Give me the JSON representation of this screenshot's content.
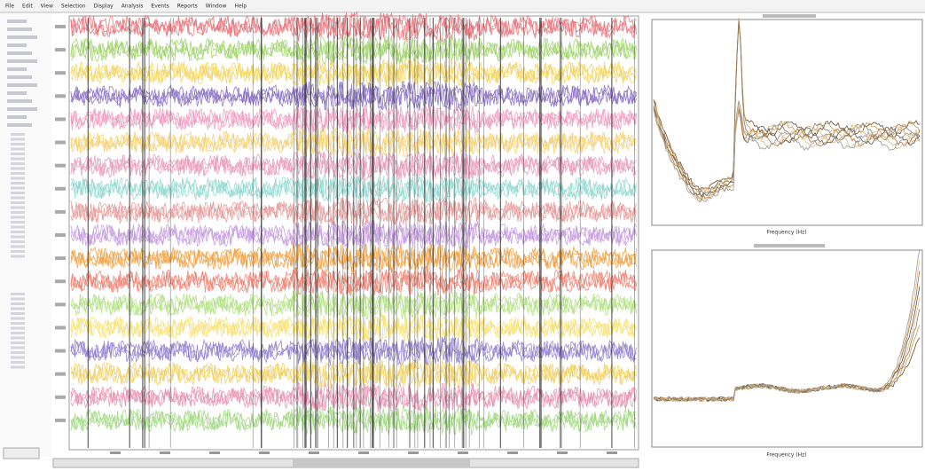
{
  "menu": [
    "File",
    "Edit",
    "View",
    "Selection",
    "Display",
    "Analysis",
    "Events",
    "Reports",
    "Window",
    "Help"
  ],
  "top_plot": {
    "x_label": "Frequency (Hz)"
  },
  "bottom_plot": {
    "x_label": "Frequency (Hz)"
  }
}
